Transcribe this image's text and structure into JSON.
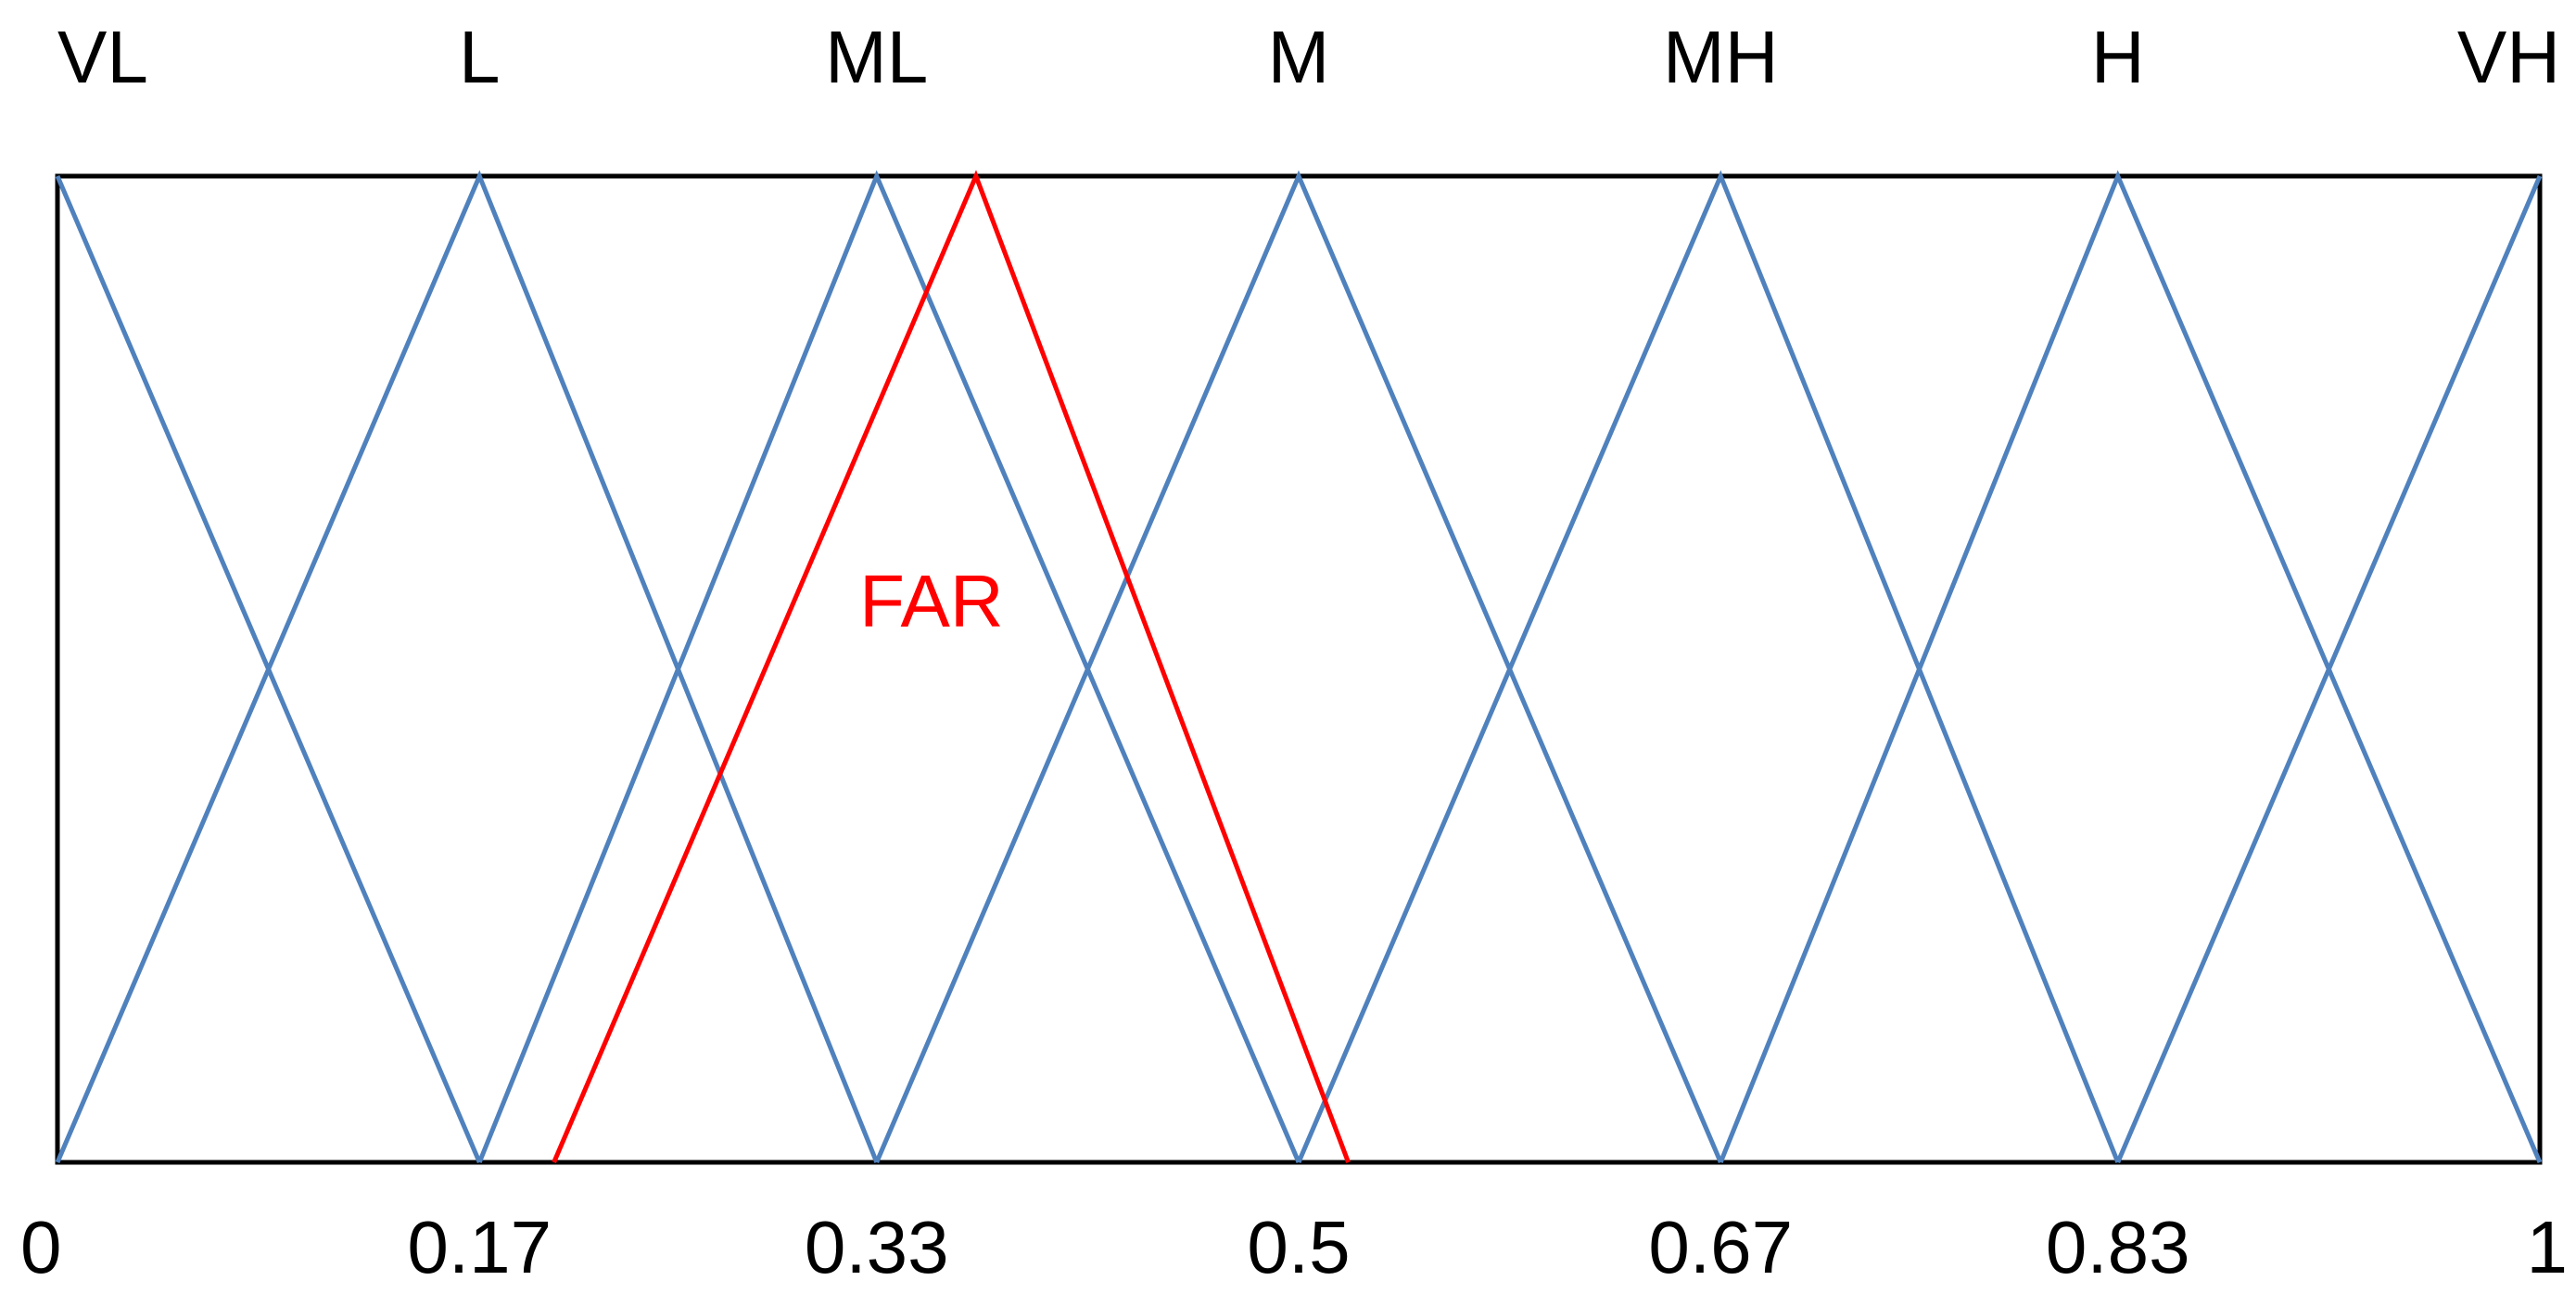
{
  "chart_data": {
    "type": "line",
    "xlim": [
      0,
      1
    ],
    "ylim": [
      0,
      1
    ],
    "xticks": [
      0,
      0.17,
      0.33,
      0.5,
      0.67,
      0.83,
      1
    ],
    "series": [
      {
        "name": "VL",
        "color": "#4f81bd",
        "x": [
          0,
          0.17
        ],
        "values": [
          1,
          0
        ]
      },
      {
        "name": "L",
        "color": "#4f81bd",
        "x": [
          0,
          0.17,
          0.33
        ],
        "values": [
          0,
          1,
          0
        ]
      },
      {
        "name": "ML",
        "color": "#4f81bd",
        "x": [
          0.17,
          0.33,
          0.5
        ],
        "values": [
          0,
          1,
          0
        ]
      },
      {
        "name": "M",
        "color": "#4f81bd",
        "x": [
          0.33,
          0.5,
          0.67
        ],
        "values": [
          0,
          1,
          0
        ]
      },
      {
        "name": "MH",
        "color": "#4f81bd",
        "x": [
          0.5,
          0.67,
          0.83
        ],
        "values": [
          0,
          1,
          0
        ]
      },
      {
        "name": "H",
        "color": "#4f81bd",
        "x": [
          0.67,
          0.83,
          1
        ],
        "values": [
          0,
          1,
          0
        ]
      },
      {
        "name": "VH",
        "color": "#4f81bd",
        "x": [
          0.83,
          1
        ],
        "values": [
          0,
          1
        ]
      },
      {
        "name": "FAR",
        "color": "#ff0000",
        "x": [
          0.2,
          0.37,
          0.52
        ],
        "values": [
          0,
          1,
          0
        ]
      }
    ]
  }
}
